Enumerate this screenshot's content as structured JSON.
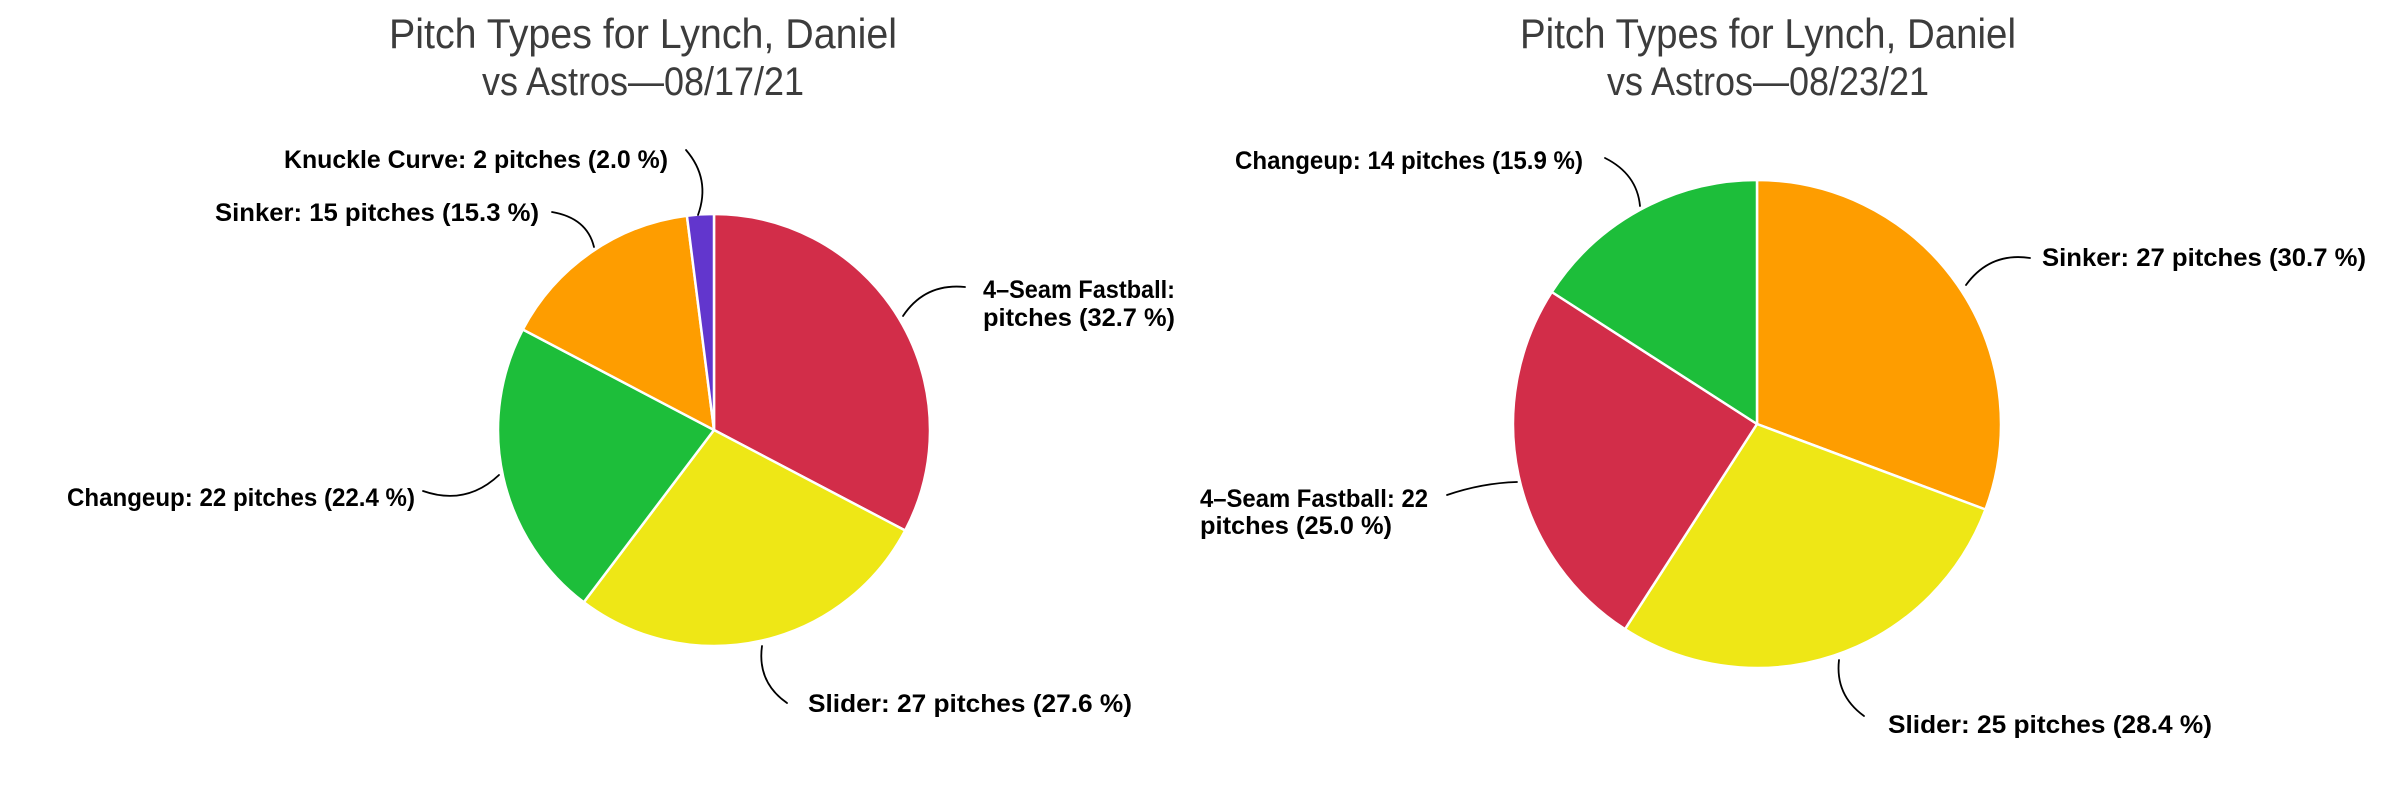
{
  "page": {
    "background": "#ffffff"
  },
  "text_colors": {
    "title": "#3c3c3c",
    "label": "#000000",
    "leader_line": "#000000"
  },
  "chart_data": [
    {
      "type": "pie",
      "title": "Pitch Types for Lynch, Daniel",
      "subtitle": "vs Astros—08/17/21",
      "direction": "clockwise",
      "start_angle": "top",
      "legend_position": "none",
      "slices": [
        {
          "pitch_type": "4-Seam Fastball",
          "pct": 32.7,
          "color": "#D22D49",
          "label_lines": [
            "4–Seam Fastball:",
            "pitches (32.7 %)"
          ]
        },
        {
          "pitch_type": "Slider",
          "pitches": 27,
          "pct": 27.6,
          "color": "#EEE716",
          "label_lines": [
            "Slider: 27 pitches (27.6 %)"
          ]
        },
        {
          "pitch_type": "Changeup",
          "pitches": 22,
          "pct": 22.4,
          "color": "#1DBE3A",
          "label_lines": [
            "Changeup: 22 pitches (22.4 %)"
          ]
        },
        {
          "pitch_type": "Sinker",
          "pitches": 15,
          "pct": 15.3,
          "color": "#FE9D00",
          "label_lines": [
            "Sinker: 15 pitches (15.3 %)"
          ]
        },
        {
          "pitch_type": "Knuckle Curve",
          "pitches": 2,
          "pct": 2.0,
          "color": "#6236CD",
          "label_lines": [
            "Knuckle Curve: 2 pitches (2.0 %)"
          ]
        }
      ]
    },
    {
      "type": "pie",
      "title": "Pitch Types for Lynch, Daniel",
      "subtitle": "vs Astros—08/23/21",
      "direction": "clockwise",
      "start_angle": "top",
      "legend_position": "none",
      "slices": [
        {
          "pitch_type": "Sinker",
          "pitches": 27,
          "pct": 30.7,
          "color": "#FE9D00",
          "label_lines": [
            "Sinker: 27 pitches (30.7 %)"
          ]
        },
        {
          "pitch_type": "Slider",
          "pitches": 25,
          "pct": 28.4,
          "color": "#EEE716",
          "label_lines": [
            "Slider: 25 pitches (28.4 %)"
          ]
        },
        {
          "pitch_type": "4-Seam Fastball",
          "pitches": 22,
          "pct": 25.0,
          "color": "#D22D49",
          "label_lines": [
            "4–Seam Fastball: 22",
            "pitches (25.0 %)"
          ]
        },
        {
          "pitch_type": "Changeup",
          "pitches": 14,
          "pct": 15.9,
          "color": "#1DBE3A",
          "label_lines": [
            "Changeup: 14 pitches (15.9 %)"
          ]
        }
      ]
    }
  ]
}
